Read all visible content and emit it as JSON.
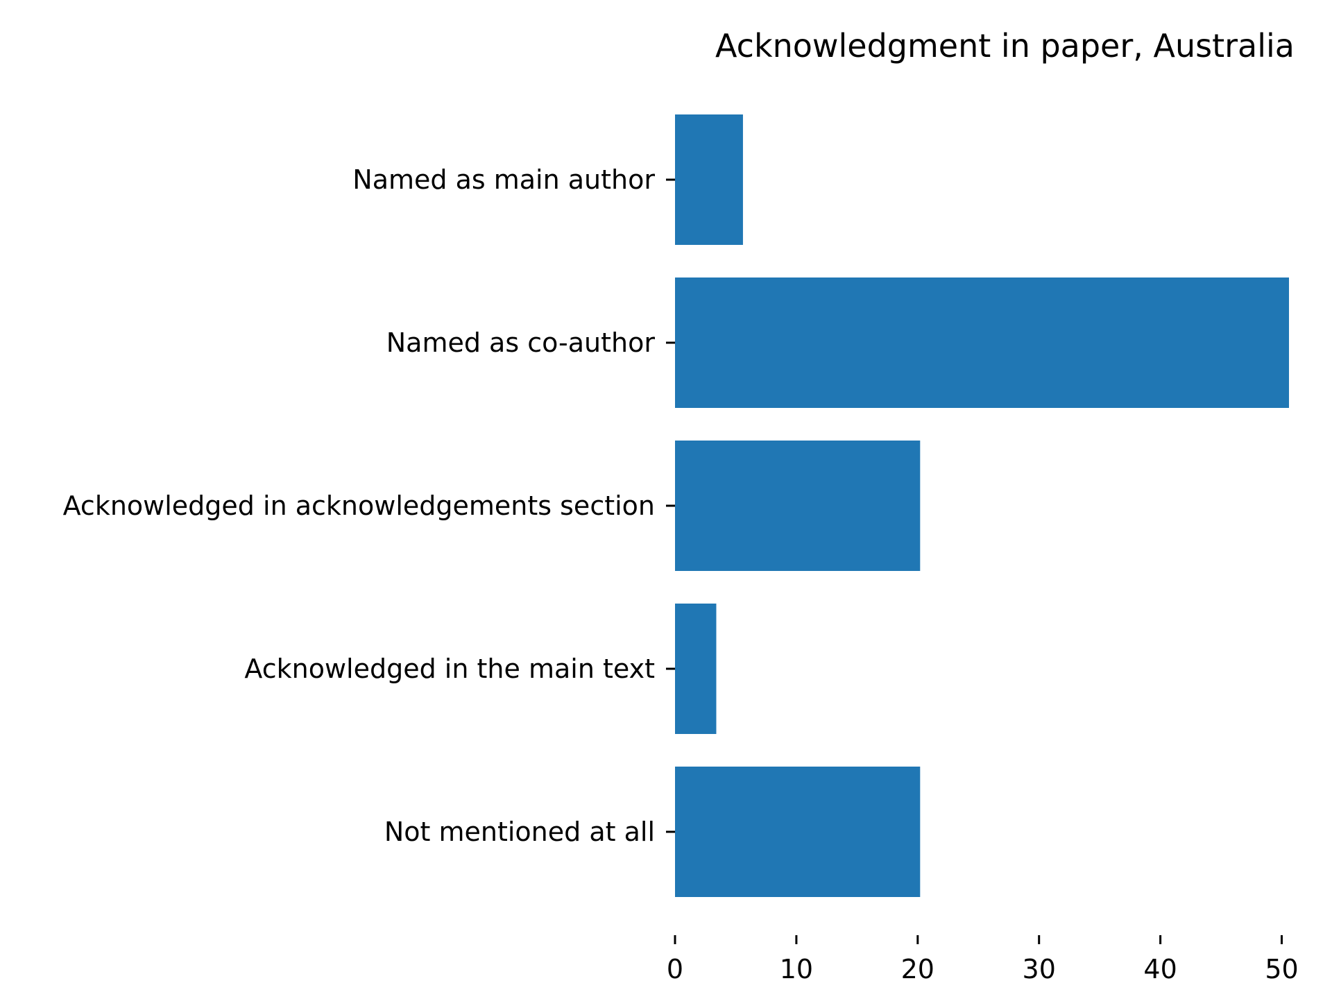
{
  "chart_data": {
    "type": "bar",
    "orientation": "horizontal",
    "title": "Acknowledgment in paper, Australia",
    "xlabel": "",
    "ylabel": "",
    "categories": [
      "Named as main author",
      "Named as co-author",
      "Acknowledged in acknowledgements section",
      "Acknowledged in the main text",
      "Not mentioned at all"
    ],
    "values": [
      5.6,
      50.6,
      20.2,
      3.4,
      20.2
    ],
    "xlim": [
      0,
      50.6
    ],
    "xticks": [
      0,
      10,
      20,
      30,
      40,
      50
    ],
    "bar_color": "#2077b4",
    "grid": false,
    "legend": "none"
  }
}
